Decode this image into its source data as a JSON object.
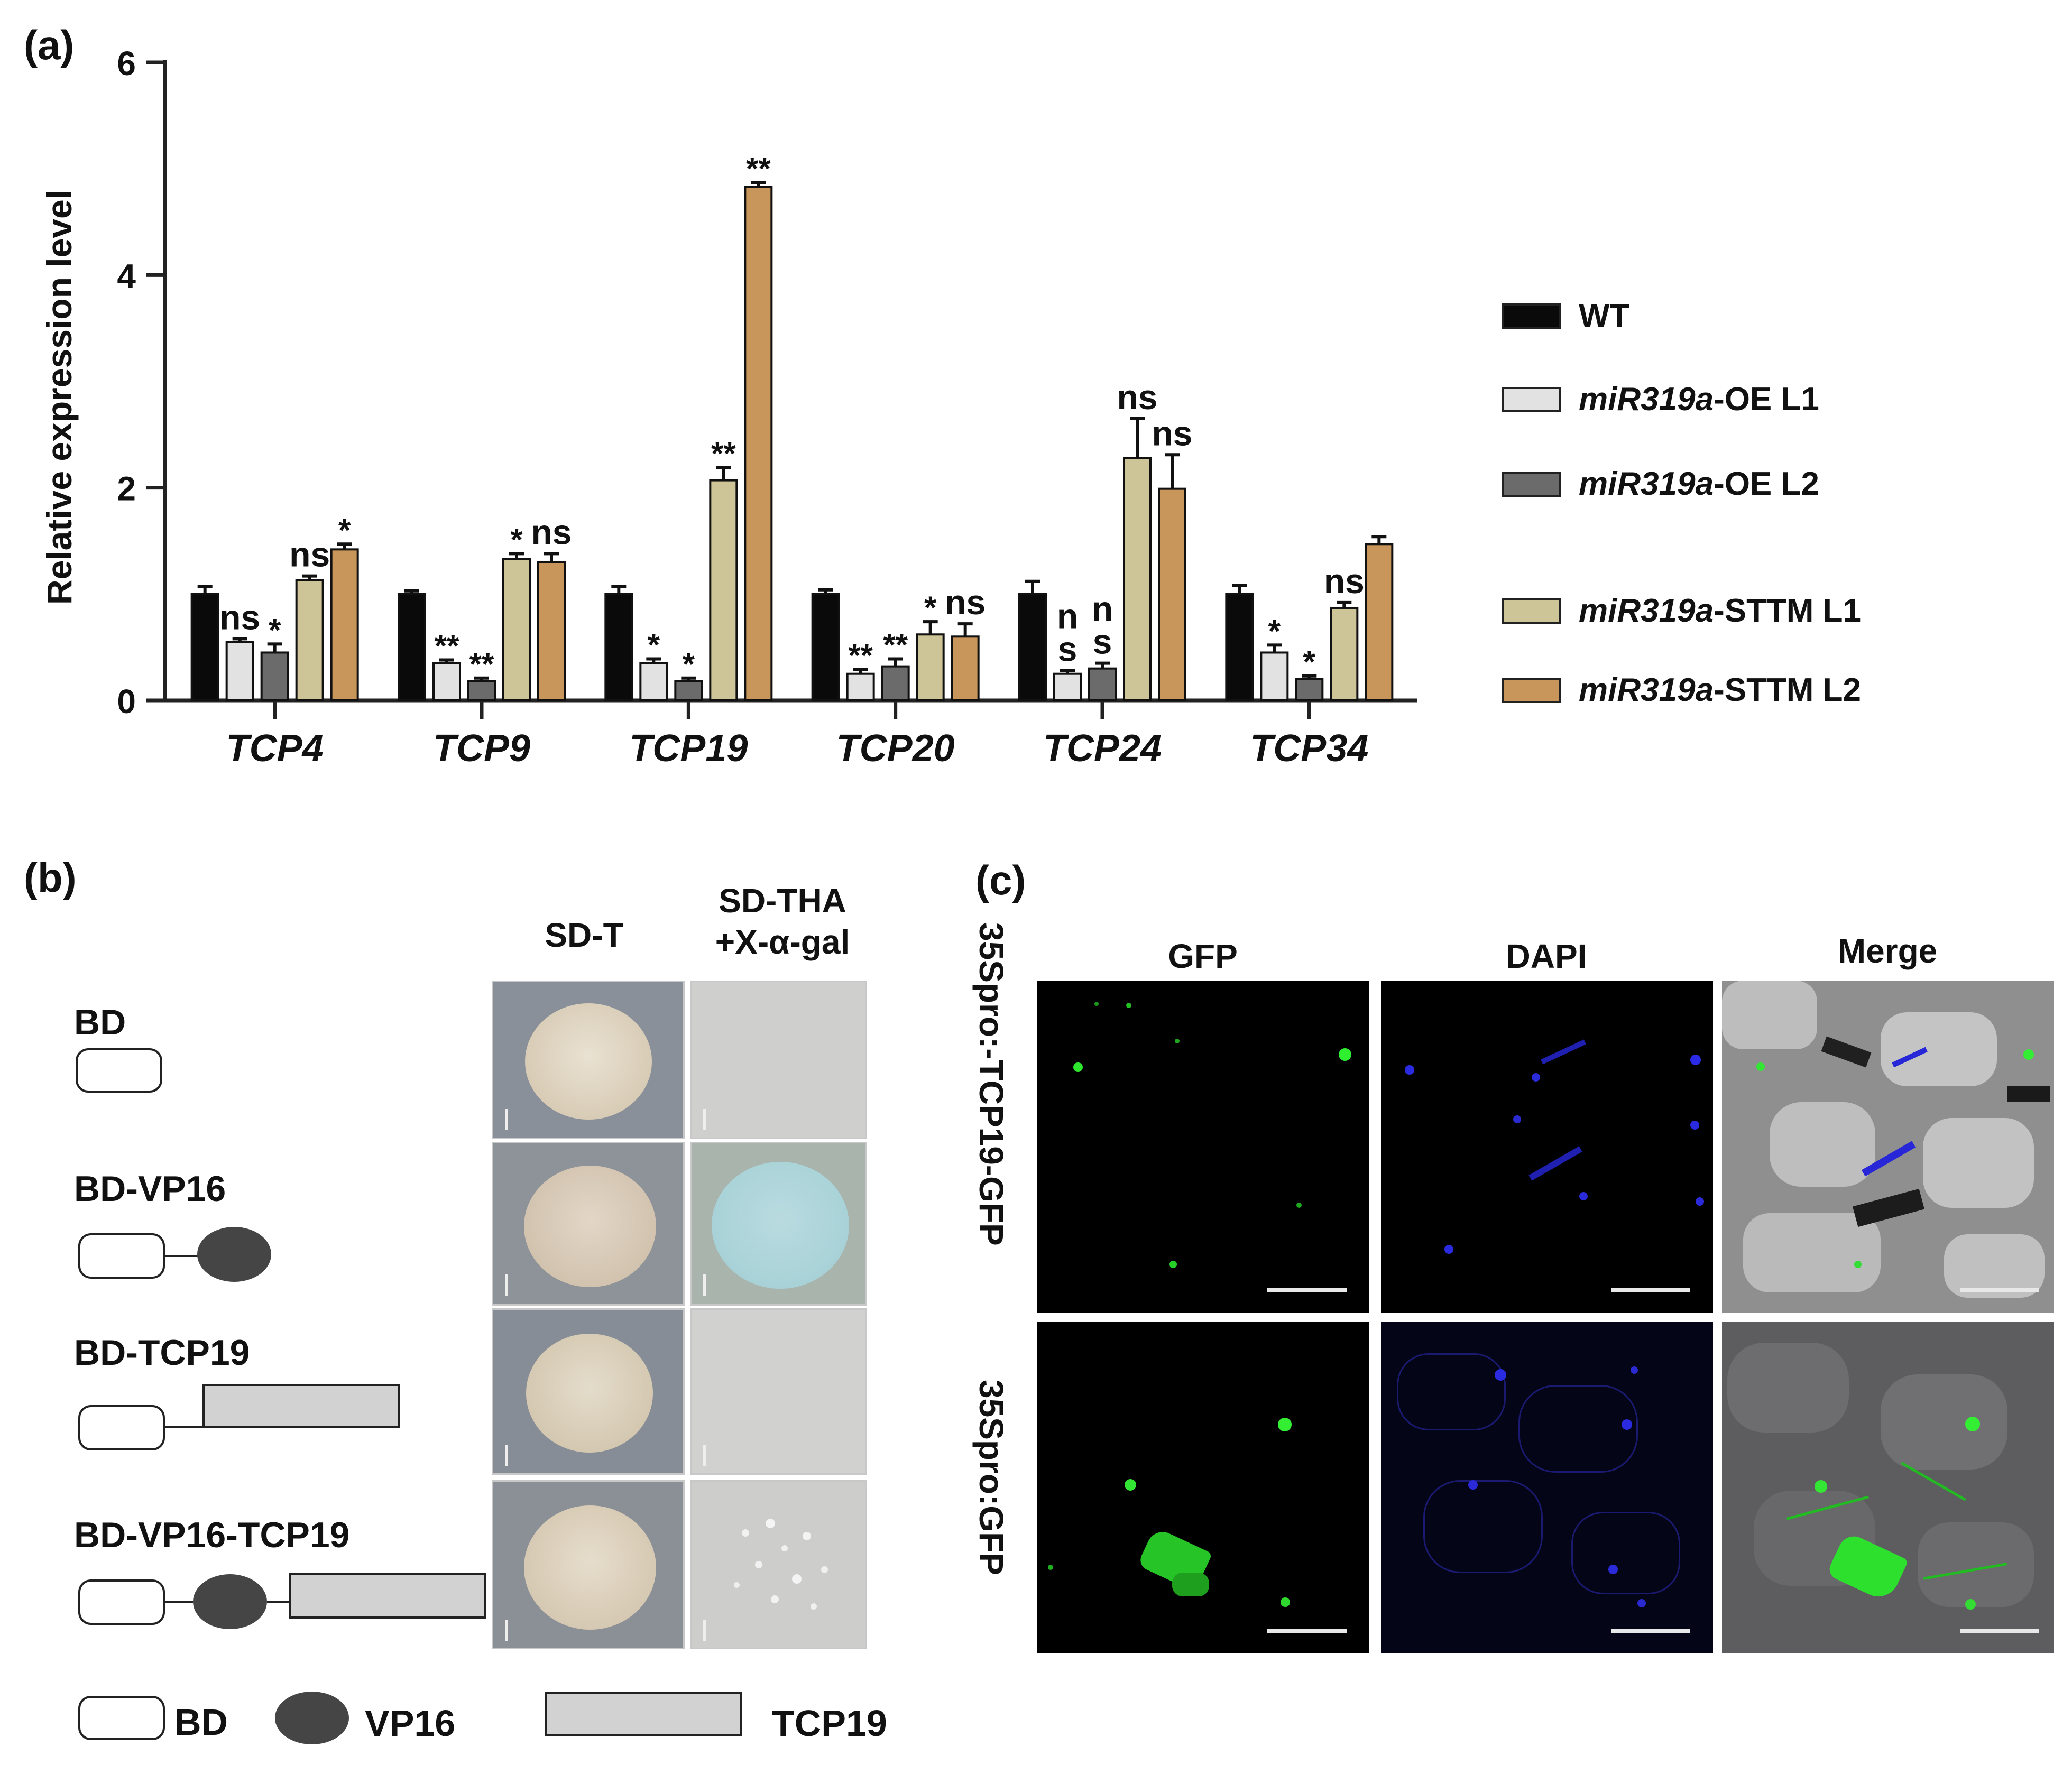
{
  "panel_a": {
    "label": "(a)",
    "chart_data": {
      "type": "bar",
      "ylabel": "Relative expression level",
      "xlabel": "",
      "ylim": [
        0,
        6
      ],
      "yticks": [
        "0",
        "2",
        "4",
        "6"
      ],
      "categories": [
        "TCP4",
        "TCP9",
        "TCP19",
        "TCP20",
        "TCP24",
        "TCP34"
      ],
      "series": [
        {
          "name": "WT",
          "color": "#0a0a0a",
          "values": [
            1.0,
            1.0,
            1.0,
            1.0,
            1.0,
            1.0
          ],
          "errors": [
            0.07,
            0.03,
            0.07,
            0.04,
            0.12,
            0.08
          ],
          "sig": [
            "",
            "",
            "",
            "",
            "",
            ""
          ]
        },
        {
          "name": "miR319a-OE L1",
          "color": "#e2e2e2",
          "values": [
            0.55,
            0.35,
            0.35,
            0.25,
            0.25,
            0.45
          ],
          "errors": [
            0.03,
            0.03,
            0.04,
            0.04,
            0.03,
            0.07
          ],
          "sig": [
            "ns",
            "**",
            "*",
            "**",
            "n\ns",
            "*"
          ]
        },
        {
          "name": "miR319a-OE L2",
          "color": "#6b6b6b",
          "values": [
            0.45,
            0.18,
            0.18,
            0.32,
            0.3,
            0.2
          ],
          "errors": [
            0.08,
            0.03,
            0.03,
            0.07,
            0.05,
            0.03
          ],
          "sig": [
            "*",
            "**",
            "*",
            "**",
            "n\ns",
            "*"
          ]
        },
        {
          "name": "miR319a-STTM L1",
          "color": "#cdc597",
          "values": [
            1.13,
            1.33,
            2.07,
            0.62,
            2.28,
            0.87
          ],
          "errors": [
            0.04,
            0.05,
            0.12,
            0.12,
            0.37,
            0.05
          ],
          "sig": [
            "ns",
            "*",
            "**",
            "*",
            "ns",
            "ns"
          ]
        },
        {
          "name": "miR319a-STTM L2",
          "color": "#c8965a",
          "values": [
            1.42,
            1.3,
            4.83,
            0.6,
            1.99,
            1.47
          ],
          "errors": [
            0.05,
            0.08,
            0.04,
            0.12,
            0.32,
            0.07
          ],
          "sig": [
            "*",
            "ns",
            "**",
            "ns",
            "ns",
            ""
          ]
        }
      ]
    },
    "legend": [
      {
        "italic": "",
        "rest": "WT",
        "color": "#0a0a0a"
      },
      {
        "italic": "miR319a",
        "rest": "-OE L1",
        "color": "#e2e2e2"
      },
      {
        "italic": "miR319a",
        "rest": "-OE L2",
        "color": "#6b6b6b"
      },
      {
        "italic": "miR319a",
        "rest": "-STTM L1",
        "color": "#cdc597"
      },
      {
        "italic": "miR319a",
        "rest": "-STTM L2",
        "color": "#c8965a"
      }
    ]
  },
  "panel_b": {
    "label": "(b)",
    "col_sd_t": "SD-T",
    "col_sd_tha": "SD-THA\n+X-α-gal",
    "constructs": [
      "BD",
      "BD-VP16",
      "BD-TCP19",
      "BD-VP16-TCP19"
    ],
    "key": {
      "bd": "BD",
      "vp16": "VP16",
      "tcp19": "TCP19"
    }
  },
  "panel_c": {
    "label": "(c)",
    "columns": [
      "GFP",
      "DAPI",
      "Merge"
    ],
    "rows": [
      "35Spro:-TCP19-GFP",
      "35Spro:GFP"
    ]
  }
}
